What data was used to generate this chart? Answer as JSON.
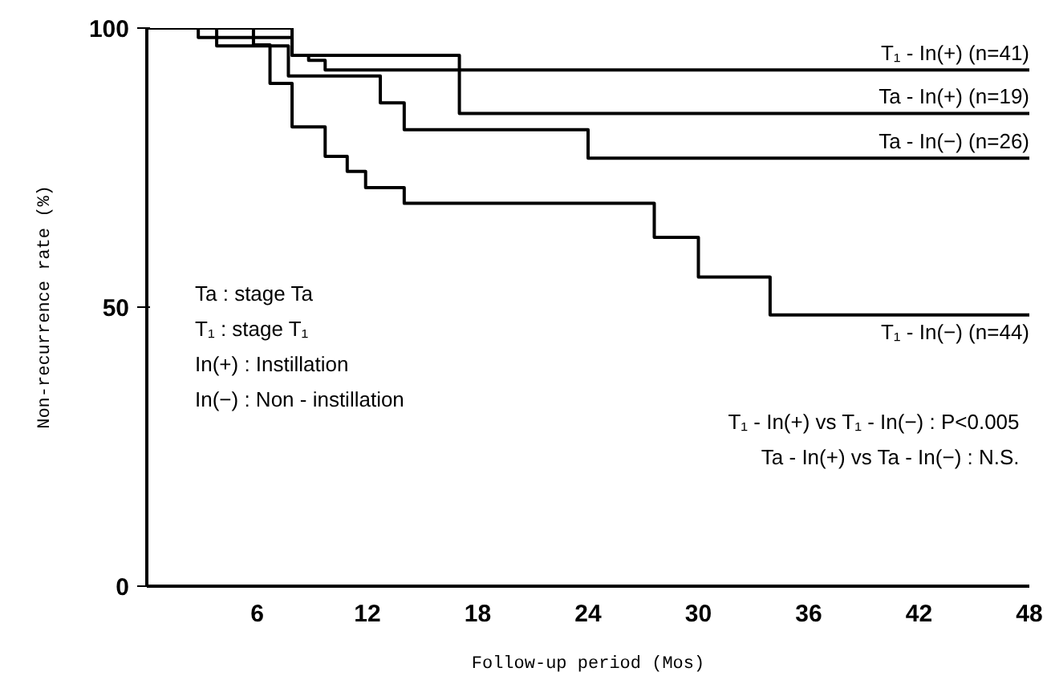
{
  "chart_data": {
    "type": "step",
    "xlabel": "Follow-up period (Mos)",
    "ylabel": "Non-recurrence rate (%)",
    "xlim": [
      0,
      48
    ],
    "xticks": [
      6,
      12,
      18,
      24,
      30,
      36,
      42,
      48
    ],
    "ylim": [
      0,
      100
    ],
    "yticks": [
      0,
      50,
      100
    ],
    "grid": false,
    "series": [
      {
        "name": "T₁ - In(+) (n=41)",
        "color": "#000000",
        "x": [
          0,
          2.8,
          7.9,
          8.8,
          9.7,
          48
        ],
        "values": [
          100,
          98.3,
          95.1,
          94.2,
          92.5,
          92.5
        ]
      },
      {
        "name": "Ta - In(+) (n=19)",
        "color": "#000000",
        "x": [
          0,
          7.9,
          17,
          48
        ],
        "values": [
          100,
          95.1,
          84.7,
          84.7
        ]
      },
      {
        "name": "Ta - In(−) (n=26)",
        "color": "#000000",
        "x": [
          0,
          3.8,
          7.7,
          12.7,
          14,
          24,
          48
        ],
        "values": [
          100,
          96.8,
          91.4,
          86.6,
          81.8,
          76.7,
          76.7
        ]
      },
      {
        "name": "T₁ - In(−) (n=44)",
        "color": "#000000",
        "x": [
          0,
          5.8,
          6.7,
          7.9,
          9.7,
          10.9,
          11.9,
          14,
          27.6,
          30,
          33.9,
          48
        ],
        "values": [
          100,
          97,
          90.1,
          82.3,
          77,
          74.3,
          71.4,
          68.6,
          62.5,
          55.4,
          48.6,
          48.6
        ]
      }
    ],
    "annotations": [
      "Ta      : stage Ta",
      "T₁      : stage T₁",
      "In(+) : Instillation",
      "In(−) : Non - instillation",
      "T₁ - In(+) vs T₁ - In(−) : P<0.005",
      "Ta - In(+) vs Ta - In(−) : N.S."
    ]
  }
}
